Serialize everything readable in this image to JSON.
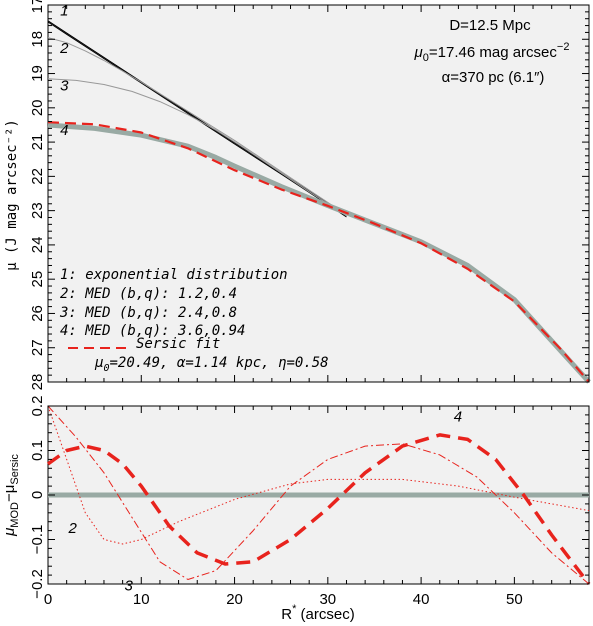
{
  "chart_data": [
    {
      "type": "line",
      "xlim": [
        0,
        58
      ],
      "ylim": [
        28,
        17
      ],
      "y_inverted": true,
      "xticks": [
        0,
        10,
        20,
        30,
        40,
        50
      ],
      "yticks": [
        17,
        18,
        19,
        20,
        21,
        22,
        23,
        24,
        25,
        26,
        27,
        28
      ],
      "ylabel": "μ (J mag arcsec⁻²)",
      "background": "#f1f1f1",
      "annotation": {
        "line1": "D=12.5 Mpc",
        "line2_main": "μ",
        "line2_sub": "0",
        "line2_rest": "=17.46 mag arcsec",
        "line2_sup": "−2",
        "line3": "α=370 pc (6.1″)"
      },
      "legend": {
        "item1": "1: exponential distribution",
        "item2": "2: MED (b,q): 1.2,0.4",
        "item3": "3: MED (b,q): 2.4,0.8",
        "item4": "4: MED (b,q): 3.6,0.94",
        "sersic_title": "Sersic fit",
        "sersic_mu": "μ",
        "sersic_sub": "0",
        "sersic_params": "=20.49,  α=1.14 kpc,  η=0.58"
      },
      "curve_labels": [
        "1",
        "2",
        "3",
        "4"
      ],
      "series": [
        {
          "label": "1",
          "color": "#000000",
          "x": [
            0,
            2,
            5,
            10,
            15,
            20,
            25,
            30,
            32
          ],
          "y": [
            17.46,
            17.82,
            18.35,
            19.24,
            20.13,
            21.02,
            21.9,
            22.79,
            23.15
          ]
        },
        {
          "label": "2",
          "color": "#999999",
          "x": [
            0,
            2,
            4,
            6,
            8,
            10,
            13,
            16,
            20,
            25,
            30,
            32
          ],
          "y": [
            17.95,
            18.1,
            18.34,
            18.62,
            18.93,
            19.25,
            19.76,
            20.27,
            20.95,
            21.86,
            22.76,
            23.13
          ]
        },
        {
          "label": "3",
          "color": "#999999",
          "x": [
            0,
            3,
            6,
            9,
            12,
            15,
            18,
            21,
            25,
            28,
            32
          ],
          "y": [
            19.15,
            19.2,
            19.32,
            19.52,
            19.82,
            20.2,
            20.65,
            21.17,
            21.9,
            22.45,
            23.15
          ]
        },
        {
          "label": "4",
          "color": "#99aaa4",
          "x": [
            0,
            5,
            10,
            15,
            18,
            20,
            25,
            30,
            35,
            40,
            45,
            50,
            55,
            58
          ],
          "y": [
            20.5,
            20.6,
            20.8,
            21.12,
            21.45,
            21.7,
            22.3,
            22.85,
            23.38,
            23.91,
            24.6,
            25.6,
            27.1,
            28.0
          ]
        },
        {
          "label": "Sersic fit",
          "color": "#e8231d",
          "dashed": true,
          "x": [
            0,
            5,
            10,
            15,
            20,
            25,
            30,
            35,
            40,
            45,
            50,
            55,
            58
          ],
          "y": [
            20.42,
            20.48,
            20.72,
            21.18,
            21.82,
            22.38,
            22.86,
            23.38,
            23.95,
            24.7,
            25.65,
            27.05,
            28.0
          ]
        }
      ]
    },
    {
      "type": "line",
      "xlim": [
        0,
        58
      ],
      "ylim": [
        -0.2,
        0.2
      ],
      "xticks": [
        0,
        10,
        20,
        30,
        40,
        50
      ],
      "yticks": [
        -0.2,
        -0.1,
        0,
        0.1,
        0.2
      ],
      "ytick_labels": [
        "−0.2",
        "−0.1",
        "0",
        "0.1",
        "0.2"
      ],
      "xlabel": "R* (arcsec)",
      "xlabel_main": "R",
      "xlabel_sup": "*",
      "xlabel_rest": " (arcsec)",
      "ylabel_main": "μ",
      "ylabel_sub1": "MOD",
      "ylabel_mid": "−μ",
      "ylabel_sub2": "Sersic",
      "background": "#f1f1f1",
      "curve_labels": [
        "2",
        "3",
        "4"
      ],
      "series": [
        {
          "label": "zero",
          "color": "#99aaa4",
          "x": [
            0,
            58
          ],
          "y": [
            0,
            0
          ]
        },
        {
          "label": "2",
          "color": "#e8231d",
          "style": "dotted",
          "x": [
            0,
            2,
            4,
            6,
            8,
            10,
            14,
            20,
            26,
            30,
            38,
            44,
            50,
            54,
            58
          ],
          "y": [
            0.2,
            0.08,
            -0.04,
            -0.1,
            -0.11,
            -0.1,
            -0.06,
            -0.01,
            0.025,
            0.035,
            0.035,
            0.02,
            -0.005,
            -0.02,
            -0.035
          ]
        },
        {
          "label": "3",
          "color": "#e8231d",
          "style": "dashdot",
          "x": [
            0,
            3,
            6,
            9,
            12,
            15,
            18,
            22,
            26,
            30,
            34,
            38,
            42,
            46,
            50,
            54,
            58
          ],
          "y": [
            0.2,
            0.13,
            0.05,
            -0.05,
            -0.15,
            -0.19,
            -0.17,
            -0.08,
            0.02,
            0.08,
            0.11,
            0.115,
            0.09,
            0.04,
            -0.04,
            -0.13,
            -0.2
          ]
        },
        {
          "label": "4",
          "color": "#e8231d",
          "style": "dashed",
          "x": [
            0,
            2,
            4,
            6,
            8,
            10,
            13,
            16,
            19,
            22,
            26,
            30,
            34,
            38,
            42,
            45,
            48,
            51,
            54,
            58
          ],
          "y": [
            0.07,
            0.1,
            0.11,
            0.1,
            0.07,
            0.02,
            -0.07,
            -0.13,
            -0.155,
            -0.15,
            -0.1,
            -0.03,
            0.05,
            0.11,
            0.135,
            0.125,
            0.08,
            0.0,
            -0.09,
            -0.2
          ]
        }
      ]
    }
  ]
}
